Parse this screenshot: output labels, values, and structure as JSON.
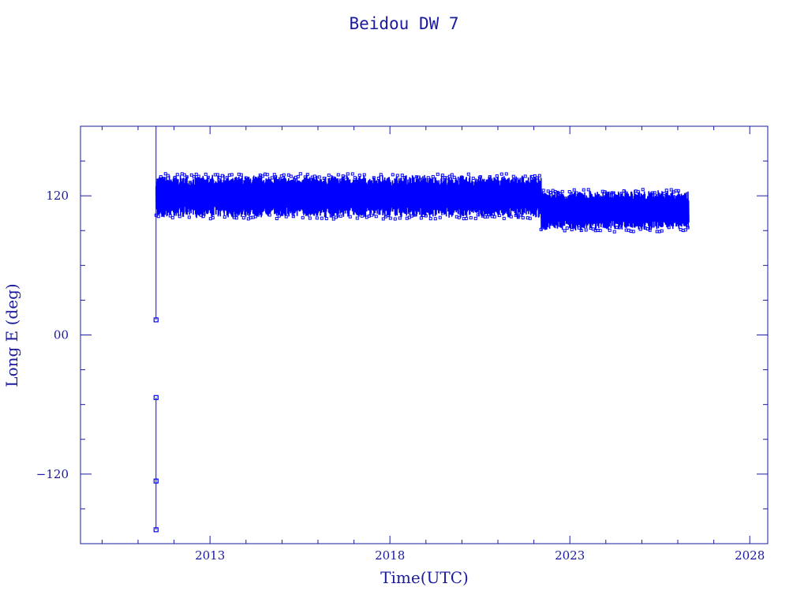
{
  "chart_data": {
    "type": "scatter",
    "title": "Beidou DW 7",
    "xlabel": "Time(UTC)",
    "ylabel": "Long E (deg)",
    "xlim": [
      2009.4,
      2028.5
    ],
    "ylim": [
      -180,
      180
    ],
    "x_ticks": [
      {
        "value": 2013,
        "label": "2013"
      },
      {
        "value": 2018,
        "label": "2018"
      },
      {
        "value": 2023,
        "label": "2023"
      },
      {
        "value": 2028,
        "label": "2028"
      }
    ],
    "y_ticks": [
      {
        "value": -120,
        "label": "−120"
      },
      {
        "value": 0,
        "label": "00"
      },
      {
        "value": 120,
        "label": "120"
      }
    ],
    "grid": false,
    "legend": "none",
    "color": "#0000ff",
    "series": [
      {
        "segments": [
          {
            "x0": 2011.5,
            "x1": 2022.2,
            "y_low": 102,
            "y_high": 137
          },
          {
            "x0": 2022.2,
            "x1": 2026.3,
            "y_low": 91,
            "y_high": 124
          }
        ],
        "points": [
          {
            "x": 2011.5,
            "y": 13
          },
          {
            "x": 2011.5,
            "y": -54
          },
          {
            "x": 2011.5,
            "y": -126
          },
          {
            "x": 2011.5,
            "y": -168
          }
        ],
        "vertical_traces": [
          {
            "x": 2011.5,
            "y0": 13,
            "y1": 180
          },
          {
            "x": 2011.5,
            "y0": -168,
            "y1": -54
          }
        ]
      }
    ]
  }
}
